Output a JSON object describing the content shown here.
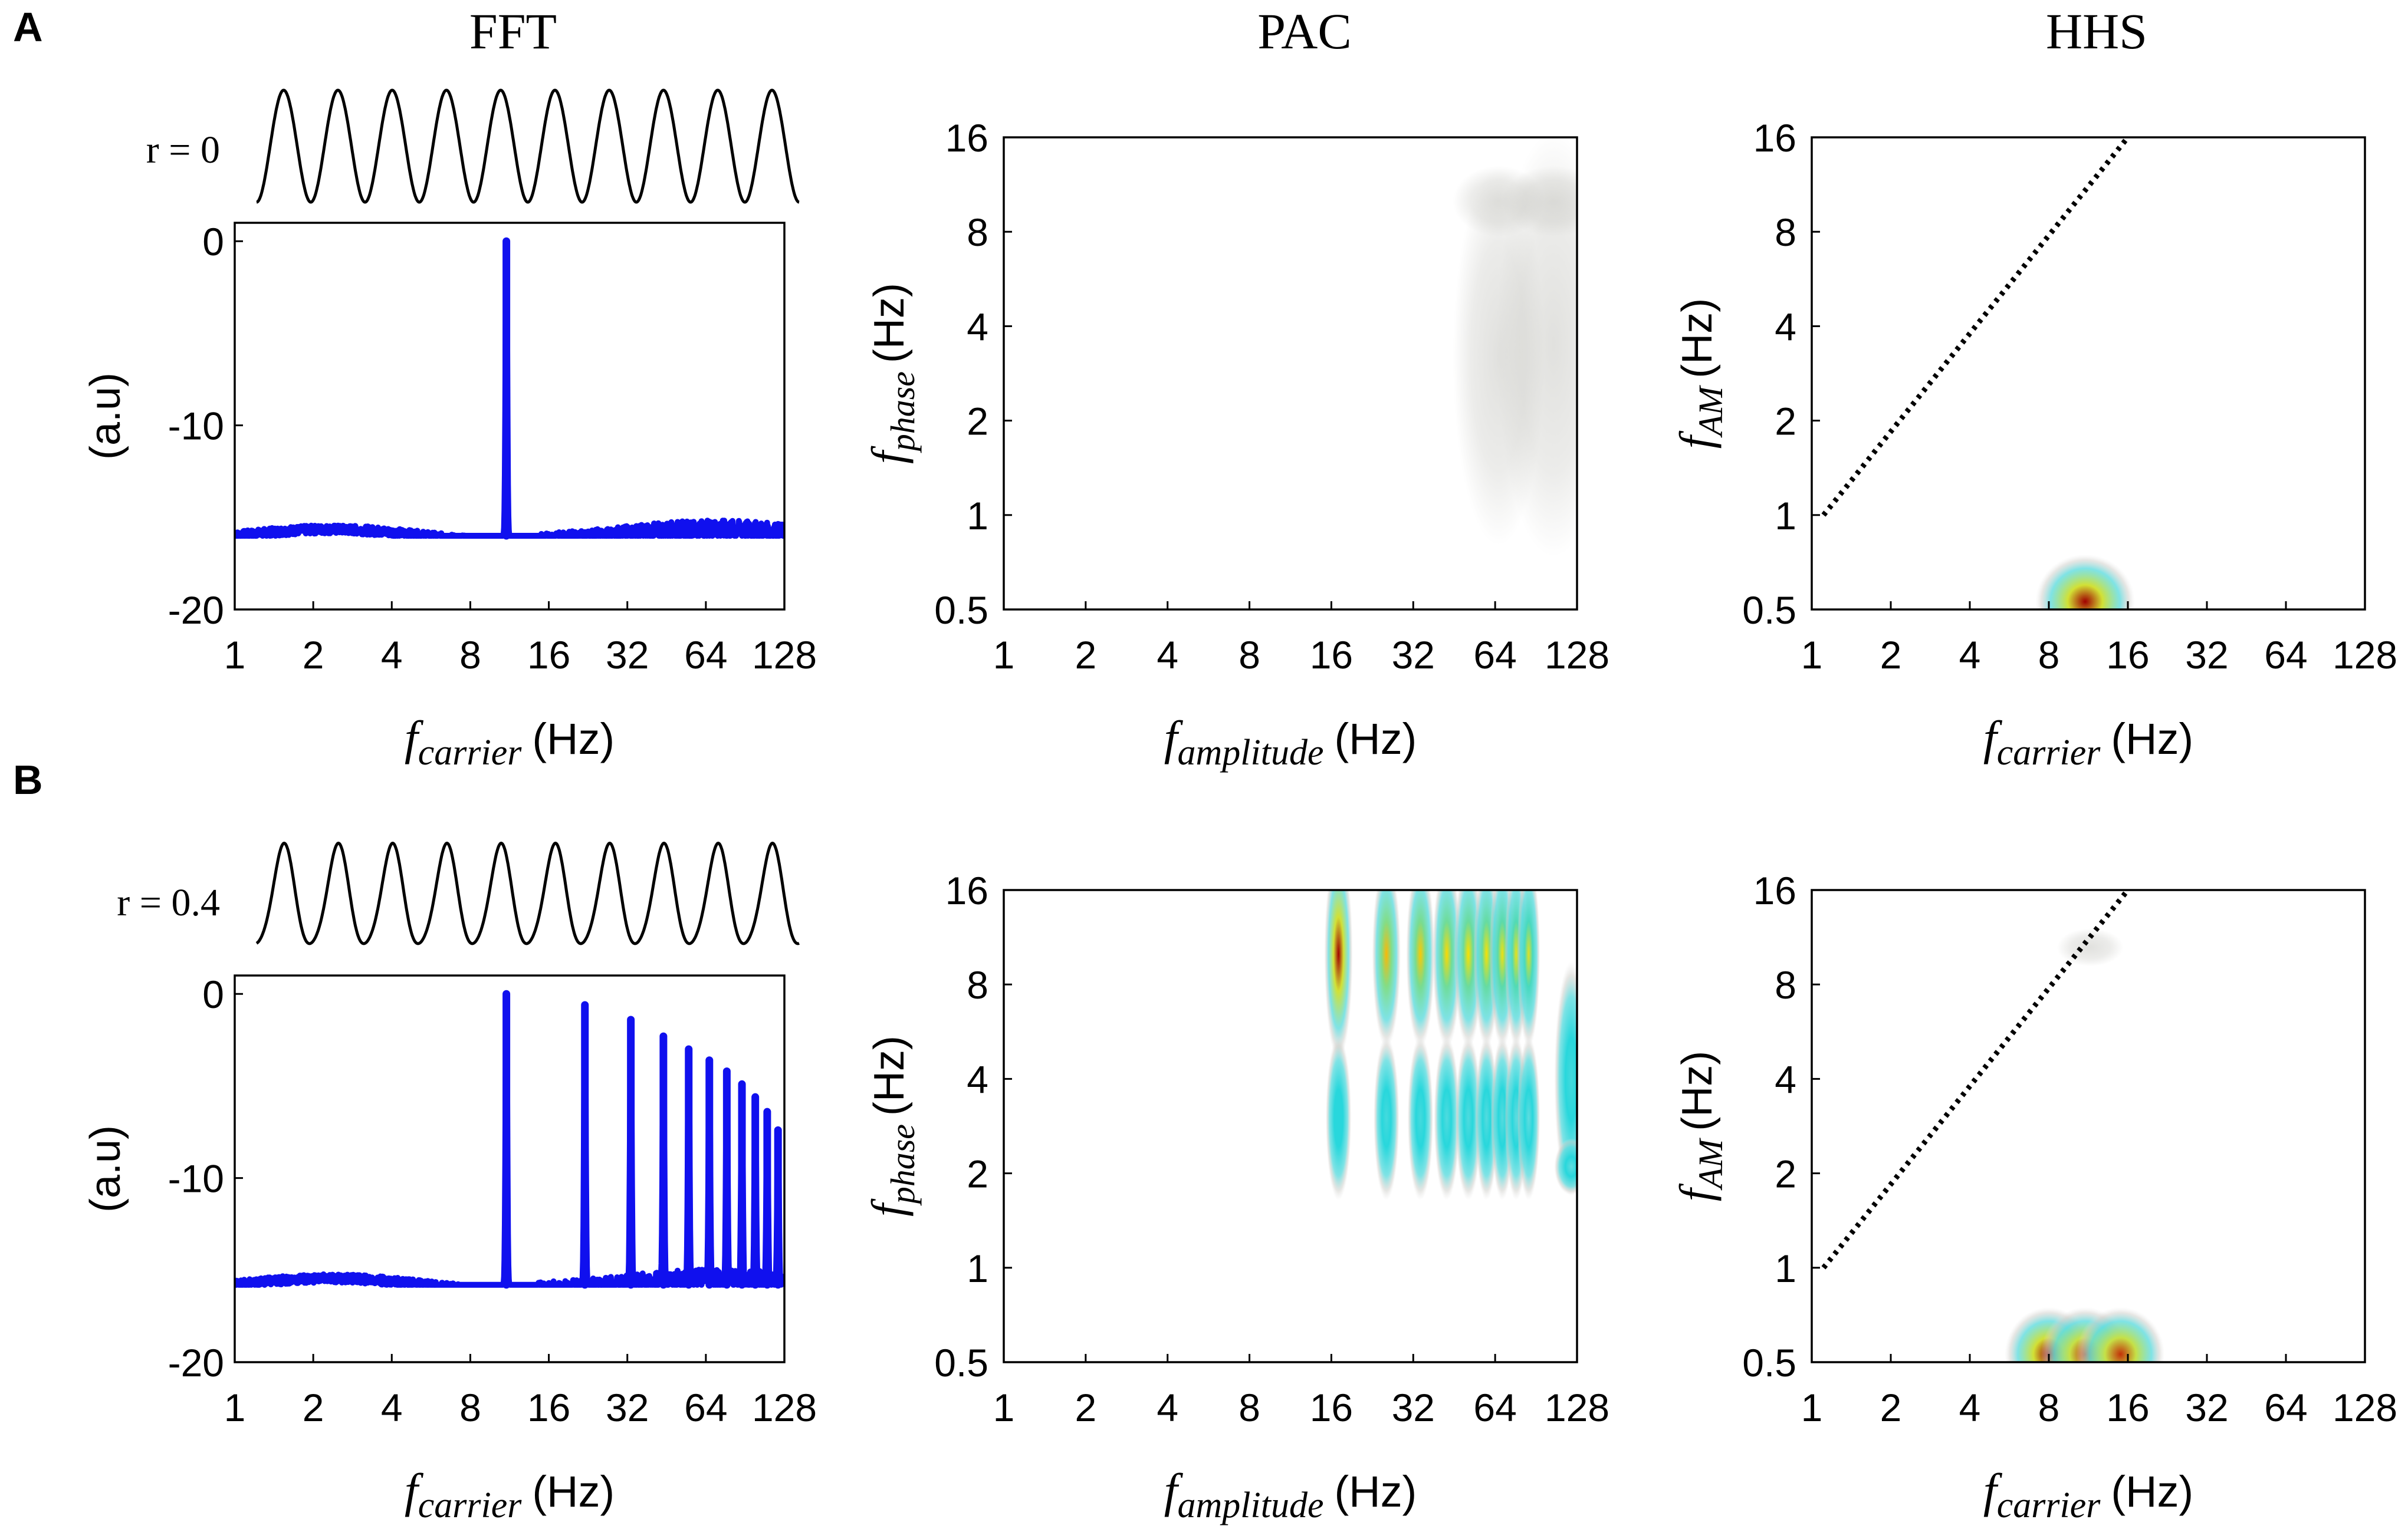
{
  "figure": {
    "panel_labels": [
      "A",
      "B"
    ],
    "column_titles": [
      "FFT",
      "PAC",
      "HHS"
    ],
    "colors": {
      "spectrum": "#1010ee",
      "axis": "#000000",
      "waveform": "#000000"
    }
  },
  "chart_data": [
    {
      "id": "A-FFT",
      "type": "line",
      "panel": "A",
      "column": "FFT",
      "waveform_label": "r = 0",
      "waveform_r": 0,
      "waveform_cycles": 10,
      "xscale": "log2",
      "xlim": [
        1,
        128
      ],
      "xticks": [
        1,
        2,
        4,
        8,
        16,
        32,
        64,
        128
      ],
      "xtick_labels": [
        "1",
        "2",
        "4",
        "8",
        "16",
        "32",
        "64",
        "128"
      ],
      "ylim": [
        -20,
        1
      ],
      "yticks": [
        -20,
        -10,
        0
      ],
      "ytick_labels": [
        "-20",
        "-10",
        "0"
      ],
      "ylabel": "(a.u)",
      "xlabel": {
        "main": "f",
        "sub": "carrier",
        "unit": "(Hz)"
      },
      "baseline": -16,
      "noise_amplitude": 0.45,
      "peaks": [
        {
          "freq": 11,
          "value": 0
        }
      ]
    },
    {
      "id": "A-PAC",
      "type": "heatmap",
      "panel": "A",
      "column": "PAC",
      "xscale": "log2",
      "xlim": [
        1,
        128
      ],
      "xticks": [
        1,
        2,
        4,
        8,
        16,
        32,
        64,
        128
      ],
      "xtick_labels": [
        "1",
        "2",
        "4",
        "8",
        "16",
        "32",
        "64",
        "128"
      ],
      "yscale": "log2",
      "ylim": [
        0.5,
        16
      ],
      "yticks": [
        0.5,
        1,
        2,
        4,
        8,
        16
      ],
      "ytick_labels": [
        "0.5",
        "1",
        "2",
        "4",
        "8",
        "16"
      ],
      "xlabel": {
        "main": "f",
        "sub": "amplitude",
        "unit": "(Hz)"
      },
      "ylabel": {
        "main": "f",
        "sub": "phase",
        "unit": "(Hz)"
      },
      "blobs": [
        {
          "x": 66,
          "y": 10,
          "w": 0.16,
          "h": 0.15,
          "level": 0.12
        },
        {
          "x": 66,
          "y": 3.2,
          "w": 0.16,
          "h": 0.8,
          "level": 0.1
        },
        {
          "x": 105,
          "y": 10,
          "w": 0.18,
          "h": 0.15,
          "level": 0.13
        },
        {
          "x": 105,
          "y": 3.5,
          "w": 0.2,
          "h": 0.9,
          "level": 0.15
        }
      ]
    },
    {
      "id": "A-HHS",
      "type": "heatmap",
      "panel": "A",
      "column": "HHS",
      "xscale": "log2",
      "xlim": [
        1,
        128
      ],
      "xticks": [
        1,
        2,
        4,
        8,
        16,
        32,
        64,
        128
      ],
      "xtick_labels": [
        "1",
        "2",
        "4",
        "8",
        "16",
        "32",
        "64",
        "128"
      ],
      "yscale": "log2",
      "ylim": [
        0.5,
        16
      ],
      "yticks": [
        0.5,
        1,
        2,
        4,
        8,
        16
      ],
      "ytick_labels": [
        "0.5",
        "1",
        "2",
        "4",
        "8",
        "16"
      ],
      "xlabel": {
        "main": "f",
        "sub": "carrier",
        "unit": "(Hz)"
      },
      "ylabel": {
        "main": "f",
        "sub": "AM",
        "unit": "(Hz)"
      },
      "reference_line": {
        "style": "dotted",
        "from": [
          1,
          1
        ],
        "to": [
          16,
          16
        ]
      },
      "blobs": [
        {
          "x": 11,
          "y": 0.53,
          "w": 0.18,
          "h": 0.2,
          "level": 1.0
        }
      ]
    },
    {
      "id": "B-FFT",
      "type": "line",
      "panel": "B",
      "column": "FFT",
      "waveform_label": "r = 0.4",
      "waveform_r": 0.4,
      "waveform_cycles": 10,
      "xscale": "log2",
      "xlim": [
        1,
        128
      ],
      "xticks": [
        1,
        2,
        4,
        8,
        16,
        32,
        64,
        128
      ],
      "xtick_labels": [
        "1",
        "2",
        "4",
        "8",
        "16",
        "32",
        "64",
        "128"
      ],
      "ylim": [
        -20,
        1
      ],
      "yticks": [
        -20,
        -10,
        0
      ],
      "ytick_labels": [
        "-20",
        "-10",
        "0"
      ],
      "ylabel": "(a.u)",
      "xlabel": {
        "main": "f",
        "sub": "carrier",
        "unit": "(Hz)"
      },
      "baseline": -15.8,
      "noise_amplitude": 0.45,
      "peaks": [
        {
          "freq": 11,
          "value": 0
        },
        {
          "freq": 22,
          "value": -0.6
        },
        {
          "freq": 33,
          "value": -1.4
        },
        {
          "freq": 44,
          "value": -2.3
        },
        {
          "freq": 55,
          "value": -3.0
        },
        {
          "freq": 66,
          "value": -3.6
        },
        {
          "freq": 77,
          "value": -4.2
        },
        {
          "freq": 88,
          "value": -4.9
        },
        {
          "freq": 99,
          "value": -5.6
        },
        {
          "freq": 110,
          "value": -6.4
        },
        {
          "freq": 121,
          "value": -7.4
        }
      ]
    },
    {
      "id": "B-PAC",
      "type": "heatmap",
      "panel": "B",
      "column": "PAC",
      "xscale": "log2",
      "xlim": [
        1,
        128
      ],
      "xticks": [
        1,
        2,
        4,
        8,
        16,
        32,
        64,
        128
      ],
      "xtick_labels": [
        "1",
        "2",
        "4",
        "8",
        "16",
        "32",
        "64",
        "128"
      ],
      "yscale": "log2",
      "ylim": [
        0.5,
        16
      ],
      "yticks": [
        0.5,
        1,
        2,
        4,
        8,
        16
      ],
      "ytick_labels": [
        "0.5",
        "1",
        "2",
        "4",
        "8",
        "16"
      ],
      "xlabel": {
        "main": "f",
        "sub": "amplitude",
        "unit": "(Hz)"
      },
      "ylabel": {
        "main": "f",
        "sub": "phase",
        "unit": "(Hz)"
      },
      "blobs": [
        {
          "x": 17,
          "y": 10,
          "w": 0.05,
          "h": 0.45,
          "level": 1.0
        },
        {
          "x": 17,
          "y": 3.0,
          "w": 0.045,
          "h": 0.35,
          "level": 0.4
        },
        {
          "x": 25.5,
          "y": 10,
          "w": 0.05,
          "h": 0.4,
          "level": 0.8
        },
        {
          "x": 25.5,
          "y": 3.0,
          "w": 0.045,
          "h": 0.35,
          "level": 0.35
        },
        {
          "x": 34,
          "y": 10,
          "w": 0.05,
          "h": 0.4,
          "level": 0.78
        },
        {
          "x": 34,
          "y": 3.0,
          "w": 0.045,
          "h": 0.35,
          "level": 0.35
        },
        {
          "x": 42.5,
          "y": 10,
          "w": 0.05,
          "h": 0.4,
          "level": 0.76
        },
        {
          "x": 42.5,
          "y": 3.0,
          "w": 0.045,
          "h": 0.35,
          "level": 0.33
        },
        {
          "x": 51,
          "y": 10,
          "w": 0.05,
          "h": 0.4,
          "level": 0.75
        },
        {
          "x": 51,
          "y": 3.0,
          "w": 0.045,
          "h": 0.35,
          "level": 0.33
        },
        {
          "x": 59.5,
          "y": 10,
          "w": 0.045,
          "h": 0.4,
          "level": 0.74
        },
        {
          "x": 59.5,
          "y": 3.0,
          "w": 0.04,
          "h": 0.35,
          "level": 0.32
        },
        {
          "x": 68,
          "y": 10,
          "w": 0.045,
          "h": 0.4,
          "level": 0.72
        },
        {
          "x": 68,
          "y": 3.0,
          "w": 0.04,
          "h": 0.35,
          "level": 0.32
        },
        {
          "x": 76.5,
          "y": 10,
          "w": 0.04,
          "h": 0.4,
          "level": 0.7
        },
        {
          "x": 76.5,
          "y": 3.0,
          "w": 0.04,
          "h": 0.35,
          "level": 0.3
        },
        {
          "x": 85,
          "y": 10,
          "w": 0.04,
          "h": 0.4,
          "level": 0.68
        },
        {
          "x": 85,
          "y": 3.0,
          "w": 0.04,
          "h": 0.35,
          "level": 0.3
        },
        {
          "x": 122,
          "y": 4,
          "w": 0.06,
          "h": 0.5,
          "level": 0.35
        },
        {
          "x": 122,
          "y": 2.1,
          "w": 0.06,
          "h": 0.12,
          "level": 0.3
        }
      ]
    },
    {
      "id": "B-HHS",
      "type": "heatmap",
      "panel": "B",
      "column": "HHS",
      "xscale": "log2",
      "xlim": [
        1,
        128
      ],
      "xticks": [
        1,
        2,
        4,
        8,
        16,
        32,
        64,
        128
      ],
      "xtick_labels": [
        "1",
        "2",
        "4",
        "8",
        "16",
        "32",
        "64",
        "128"
      ],
      "yscale": "log2",
      "ylim": [
        0.5,
        16
      ],
      "yticks": [
        0.5,
        1,
        2,
        4,
        8,
        16
      ],
      "ytick_labels": [
        "0.5",
        "1",
        "2",
        "4",
        "8",
        "16"
      ],
      "xlabel": {
        "main": "f",
        "sub": "carrier",
        "unit": "(Hz)"
      },
      "ylabel": {
        "main": "f",
        "sub": "AM",
        "unit": "(Hz)"
      },
      "reference_line": {
        "style": "dotted",
        "from": [
          1,
          1
        ],
        "to": [
          16,
          16
        ]
      },
      "blobs": [
        {
          "x": 8,
          "y": 0.53,
          "w": 0.16,
          "h": 0.2,
          "level": 1.0
        },
        {
          "x": 11,
          "y": 0.53,
          "w": 0.16,
          "h": 0.2,
          "level": 0.95
        },
        {
          "x": 15,
          "y": 0.53,
          "w": 0.16,
          "h": 0.2,
          "level": 0.95
        },
        {
          "x": 11.5,
          "y": 10.5,
          "w": 0.12,
          "h": 0.08,
          "level": 0.06
        }
      ]
    }
  ]
}
